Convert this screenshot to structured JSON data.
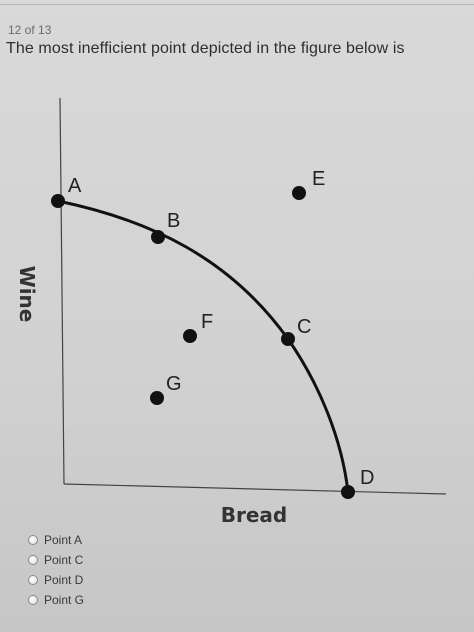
{
  "question": {
    "progress": "12 of 13",
    "text": "The most inefficient point depicted in the figure below is"
  },
  "figure": {
    "x_axis_label": "Bread",
    "y_axis_label": "Wine",
    "points": [
      {
        "label": "A",
        "on_curve": true
      },
      {
        "label": "B",
        "on_curve": true
      },
      {
        "label": "C",
        "on_curve": true
      },
      {
        "label": "D",
        "on_curve": true
      },
      {
        "label": "E",
        "on_curve": false
      },
      {
        "label": "F",
        "on_curve": false
      },
      {
        "label": "G",
        "on_curve": false
      }
    ]
  },
  "options": [
    {
      "label": "Point A"
    },
    {
      "label": "Point C"
    },
    {
      "label": "Point D"
    },
    {
      "label": "Point G"
    }
  ]
}
